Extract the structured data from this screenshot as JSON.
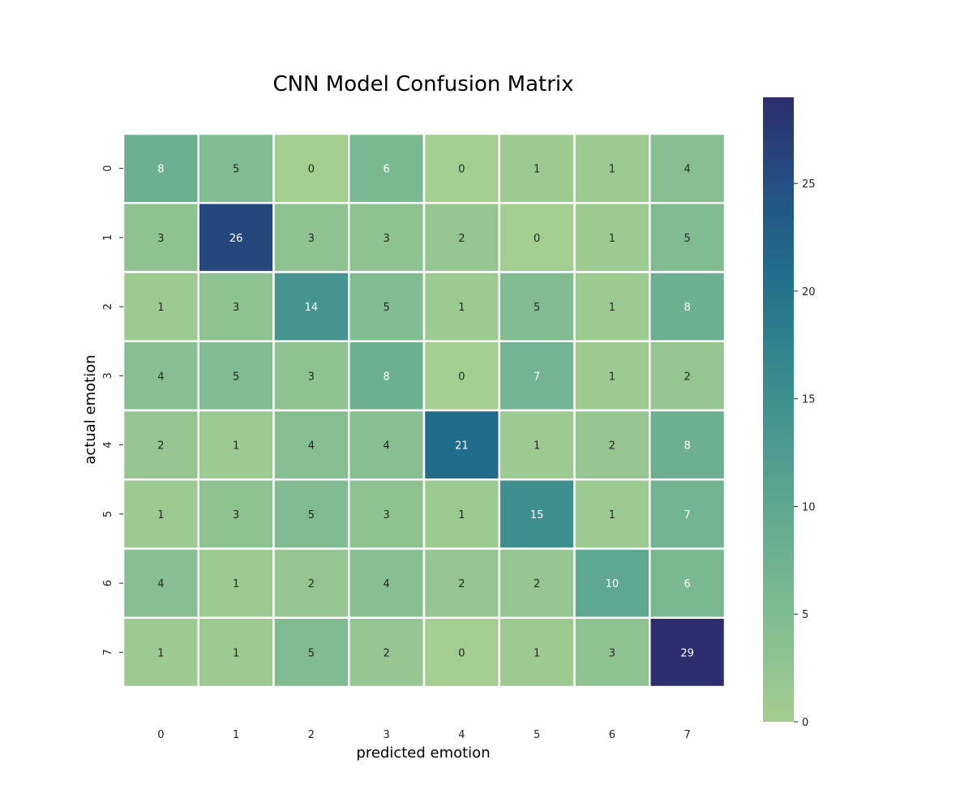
{
  "chart_data": {
    "type": "heatmap",
    "title": "CNN Model Confusion Matrix",
    "xlabel": "predicted emotion",
    "ylabel": "actual emotion",
    "x_categories": [
      "0",
      "1",
      "2",
      "3",
      "4",
      "5",
      "6",
      "7"
    ],
    "y_categories": [
      "0",
      "1",
      "2",
      "3",
      "4",
      "5",
      "6",
      "7"
    ],
    "values": [
      [
        8,
        5,
        0,
        6,
        0,
        1,
        1,
        4
      ],
      [
        3,
        26,
        3,
        3,
        2,
        0,
        1,
        5
      ],
      [
        1,
        3,
        14,
        5,
        1,
        5,
        1,
        8
      ],
      [
        4,
        5,
        3,
        8,
        0,
        7,
        1,
        2
      ],
      [
        2,
        1,
        4,
        4,
        21,
        1,
        2,
        8
      ],
      [
        1,
        3,
        5,
        3,
        1,
        15,
        1,
        7
      ],
      [
        4,
        1,
        2,
        4,
        2,
        2,
        10,
        6
      ],
      [
        1,
        1,
        5,
        2,
        0,
        1,
        3,
        29
      ]
    ],
    "colorbar": {
      "range": [
        0,
        29
      ],
      "ticks": [
        0,
        5,
        10,
        15,
        20,
        25
      ],
      "colormap": "crest"
    },
    "annotated": true
  }
}
